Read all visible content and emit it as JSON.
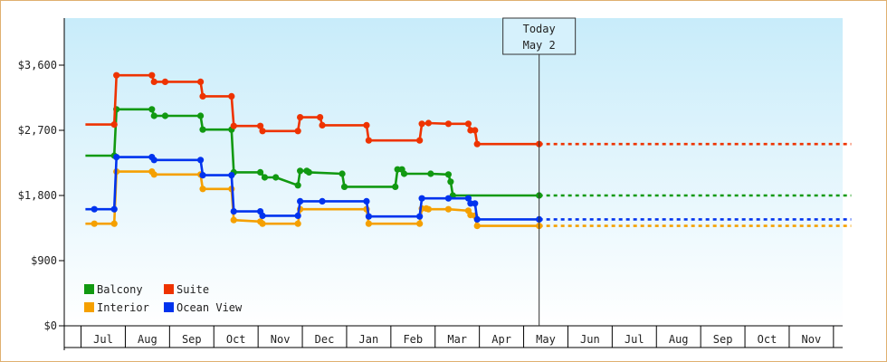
{
  "chart_data": {
    "type": "line",
    "step": true,
    "title": "",
    "xlabel": "",
    "ylabel": "",
    "ylim": [
      0,
      4250
    ],
    "y_ticks": [
      {
        "value": 0,
        "label": "$0"
      },
      {
        "value": 900,
        "label": "$900"
      },
      {
        "value": 1800,
        "label": "$1,800"
      },
      {
        "value": 2700,
        "label": "$2,700"
      },
      {
        "value": 3600,
        "label": "$3,600"
      }
    ],
    "x_months": [
      "Jul",
      "Aug",
      "Sep",
      "Oct",
      "Nov",
      "Dec",
      "Jan",
      "Feb",
      "Mar",
      "Apr",
      "May",
      "Jun",
      "Jul",
      "Aug",
      "Sep",
      "Oct",
      "Nov"
    ],
    "x_range": [
      -0.4,
      16.9
    ],
    "today": {
      "line1": "Today",
      "line2": "May 2",
      "x": 9.85
    },
    "legend_placement": "bottom-left",
    "series": [
      {
        "name": "Balcony",
        "color": "#119911",
        "points": [
          [
            -0.4,
            2350
          ],
          [
            0.25,
            2350
          ],
          [
            0.3,
            2990
          ],
          [
            1.1,
            2990
          ],
          [
            1.15,
            2900
          ],
          [
            1.4,
            2900
          ],
          [
            2.2,
            2900
          ],
          [
            2.25,
            2710
          ],
          [
            2.9,
            2710
          ],
          [
            2.95,
            2120
          ],
          [
            3.55,
            2120
          ],
          [
            3.65,
            2050
          ],
          [
            3.9,
            2050
          ],
          [
            4.4,
            1940
          ],
          [
            4.45,
            2140
          ],
          [
            4.6,
            2140
          ],
          [
            4.65,
            2120
          ],
          [
            5.4,
            2100
          ],
          [
            5.45,
            1920
          ],
          [
            6.6,
            1920
          ],
          [
            6.65,
            2160
          ],
          [
            6.75,
            2160
          ],
          [
            6.8,
            2100
          ],
          [
            7.4,
            2100
          ],
          [
            7.8,
            2090
          ],
          [
            7.85,
            1990
          ],
          [
            7.9,
            1800
          ],
          [
            9.85,
            1800
          ]
        ],
        "forecast": [
          [
            9.85,
            1800
          ],
          [
            16.9,
            1800
          ]
        ]
      },
      {
        "name": "Suite",
        "color": "#ee3300",
        "points": [
          [
            -0.4,
            2780
          ],
          [
            0.25,
            2780
          ],
          [
            0.3,
            3460
          ],
          [
            1.1,
            3460
          ],
          [
            1.15,
            3370
          ],
          [
            1.4,
            3370
          ],
          [
            2.2,
            3370
          ],
          [
            2.25,
            3170
          ],
          [
            2.9,
            3170
          ],
          [
            2.95,
            2760
          ],
          [
            3.55,
            2760
          ],
          [
            3.6,
            2690
          ],
          [
            4.4,
            2690
          ],
          [
            4.45,
            2880
          ],
          [
            4.9,
            2880
          ],
          [
            4.95,
            2770
          ],
          [
            5.95,
            2770
          ],
          [
            6.0,
            2560
          ],
          [
            7.15,
            2560
          ],
          [
            7.2,
            2790
          ],
          [
            7.35,
            2800
          ],
          [
            7.8,
            2790
          ],
          [
            8.25,
            2790
          ],
          [
            8.3,
            2700
          ],
          [
            8.4,
            2700
          ],
          [
            8.45,
            2510
          ],
          [
            9.85,
            2510
          ]
        ],
        "forecast": [
          [
            9.85,
            2510
          ],
          [
            16.9,
            2510
          ]
        ]
      },
      {
        "name": "Interior",
        "color": "#f5a000",
        "points": [
          [
            -0.4,
            1410
          ],
          [
            -0.2,
            1410
          ],
          [
            0.25,
            1410
          ],
          [
            0.3,
            2130
          ],
          [
            1.1,
            2130
          ],
          [
            1.15,
            2090
          ],
          [
            2.2,
            2090
          ],
          [
            2.25,
            1890
          ],
          [
            2.9,
            1890
          ],
          [
            2.95,
            1460
          ],
          [
            3.55,
            1440
          ],
          [
            3.6,
            1410
          ],
          [
            4.4,
            1410
          ],
          [
            4.45,
            1610
          ],
          [
            5.95,
            1610
          ],
          [
            6.0,
            1410
          ],
          [
            7.15,
            1410
          ],
          [
            7.2,
            1620
          ],
          [
            7.3,
            1620
          ],
          [
            7.35,
            1610
          ],
          [
            7.8,
            1610
          ],
          [
            8.25,
            1590
          ],
          [
            8.3,
            1530
          ],
          [
            8.4,
            1520
          ],
          [
            8.45,
            1380
          ],
          [
            9.85,
            1380
          ]
        ],
        "forecast": [
          [
            9.85,
            1380
          ],
          [
            16.9,
            1380
          ]
        ]
      },
      {
        "name": "Ocean View",
        "color": "#0033ee",
        "points": [
          [
            -0.4,
            1610
          ],
          [
            -0.2,
            1610
          ],
          [
            0.25,
            1610
          ],
          [
            0.3,
            2330
          ],
          [
            1.1,
            2330
          ],
          [
            1.15,
            2290
          ],
          [
            2.2,
            2290
          ],
          [
            2.25,
            2080
          ],
          [
            2.9,
            2080
          ],
          [
            2.95,
            1580
          ],
          [
            3.55,
            1580
          ],
          [
            3.6,
            1520
          ],
          [
            4.4,
            1520
          ],
          [
            4.45,
            1720
          ],
          [
            4.95,
            1720
          ],
          [
            5.95,
            1720
          ],
          [
            6.0,
            1510
          ],
          [
            7.15,
            1510
          ],
          [
            7.2,
            1760
          ],
          [
            7.8,
            1760
          ],
          [
            8.25,
            1760
          ],
          [
            8.3,
            1690
          ],
          [
            8.4,
            1690
          ],
          [
            8.45,
            1470
          ],
          [
            9.85,
            1470
          ]
        ],
        "forecast": [
          [
            9.85,
            1470
          ],
          [
            16.9,
            1470
          ]
        ]
      }
    ],
    "legend": [
      {
        "name": "Balcony",
        "color": "#119911"
      },
      {
        "name": "Suite",
        "color": "#ee3300"
      },
      {
        "name": "Interior",
        "color": "#f5a000"
      },
      {
        "name": "Ocean View",
        "color": "#0033ee"
      }
    ]
  }
}
